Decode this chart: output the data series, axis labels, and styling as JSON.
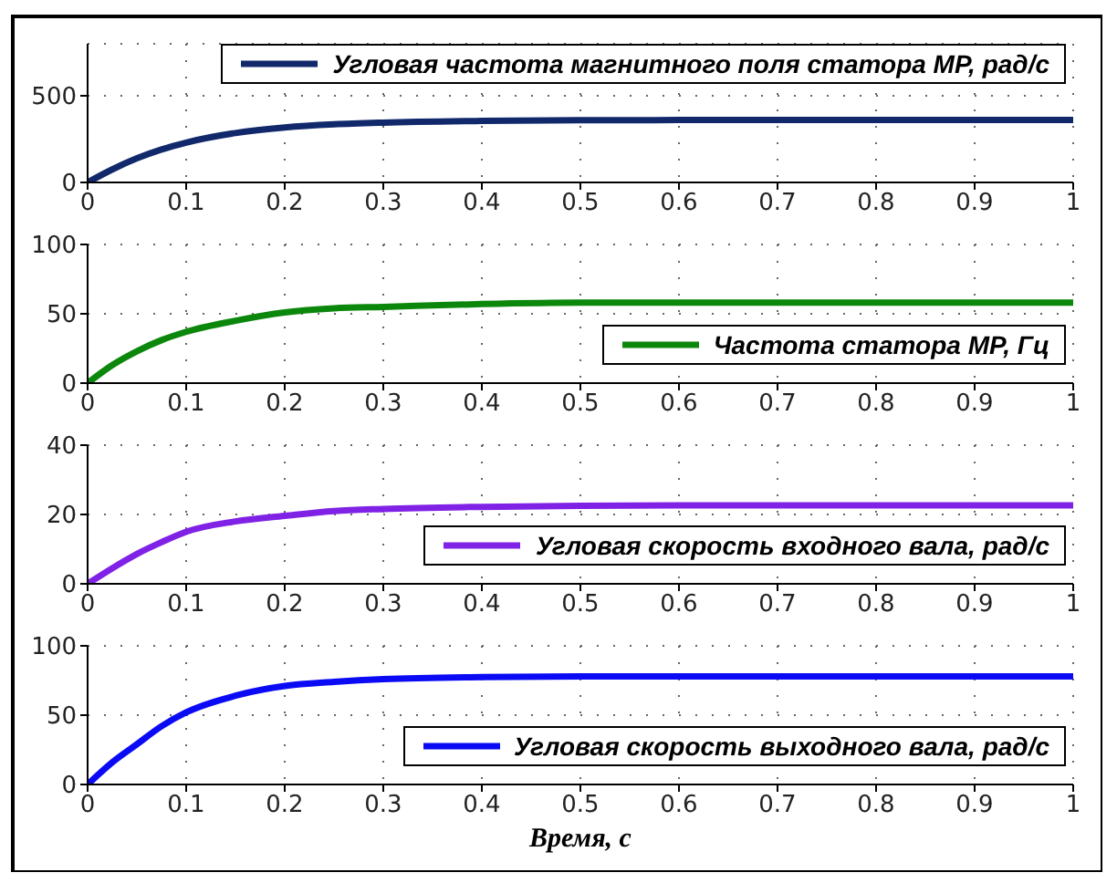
{
  "chart_data": [
    {
      "type": "line",
      "x": [
        0,
        0.025,
        0.05,
        0.075,
        0.1,
        0.15,
        0.2,
        0.25,
        0.3,
        0.4,
        0.5,
        0.6,
        0.8,
        1
      ],
      "series": [
        {
          "name": "Угловая частота магнитного поля статора МР, рад/с",
          "color": "#11296b",
          "values": [
            0,
            75,
            139,
            190,
            230,
            285,
            317,
            335,
            345,
            355,
            359,
            360,
            361,
            361
          ]
        }
      ],
      "xlim": [
        0,
        1
      ],
      "xticks": [
        0,
        0.1,
        0.2,
        0.3,
        0.4,
        0.5,
        0.6,
        0.7,
        0.8,
        0.9,
        1
      ],
      "ylim": [
        0,
        800
      ],
      "yticks": [
        0,
        500
      ],
      "grid": true,
      "legend": "top right",
      "marker": "none",
      "line_style": "solid"
    },
    {
      "type": "line",
      "x": [
        0,
        0.025,
        0.05,
        0.075,
        0.1,
        0.15,
        0.2,
        0.25,
        0.3,
        0.4,
        0.5,
        0.6,
        0.8,
        1
      ],
      "series": [
        {
          "name": "Частота статора МР, Гц",
          "color": "#0b870b",
          "values": [
            0,
            13,
            23,
            31,
            37,
            45,
            51,
            54,
            55,
            57,
            58,
            58,
            58,
            58
          ]
        }
      ],
      "xlim": [
        0,
        1
      ],
      "xticks": [
        0,
        0.1,
        0.2,
        0.3,
        0.4,
        0.5,
        0.6,
        0.7,
        0.8,
        0.9,
        1
      ],
      "ylim": [
        0,
        100
      ],
      "yticks": [
        0,
        50,
        100
      ],
      "grid": true,
      "legend": "bottom right",
      "marker": "none",
      "line_style": "solid"
    },
    {
      "type": "line",
      "x": [
        0,
        0.025,
        0.05,
        0.075,
        0.1,
        0.15,
        0.2,
        0.25,
        0.3,
        0.4,
        0.5,
        0.6,
        0.8,
        1
      ],
      "series": [
        {
          "name": "Угловая скорость входного вала, рад/с",
          "color": "#8022e6",
          "values": [
            0,
            4.5,
            8.6,
            12,
            15,
            18,
            19.6,
            21,
            21.6,
            22.2,
            22.5,
            22.6,
            22.6,
            22.6
          ]
        }
      ],
      "xlim": [
        0,
        1
      ],
      "xticks": [
        0,
        0.1,
        0.2,
        0.3,
        0.4,
        0.5,
        0.6,
        0.7,
        0.8,
        0.9,
        1
      ],
      "ylim": [
        0,
        40
      ],
      "yticks": [
        0,
        20,
        40
      ],
      "grid": true,
      "legend": "bottom right",
      "marker": "none",
      "line_style": "solid"
    },
    {
      "type": "line",
      "x": [
        0,
        0.025,
        0.05,
        0.075,
        0.1,
        0.15,
        0.2,
        0.25,
        0.3,
        0.4,
        0.5,
        0.6,
        0.8,
        1
      ],
      "series": [
        {
          "name": "Угловая скорость выходного вала, рад/с",
          "color": "#0a0af5",
          "values": [
            0,
            16,
            29,
            42,
            52,
            64,
            71,
            74,
            76,
            77.5,
            78,
            78,
            78,
            78
          ]
        }
      ],
      "xlim": [
        0,
        1
      ],
      "xticks": [
        0,
        0.1,
        0.2,
        0.3,
        0.4,
        0.5,
        0.6,
        0.7,
        0.8,
        0.9,
        1
      ],
      "ylim": [
        0,
        100
      ],
      "yticks": [
        0,
        50,
        100
      ],
      "grid": true,
      "legend": "bottom right",
      "marker": "none",
      "line_style": "solid",
      "xlabel": "Время, с"
    }
  ]
}
